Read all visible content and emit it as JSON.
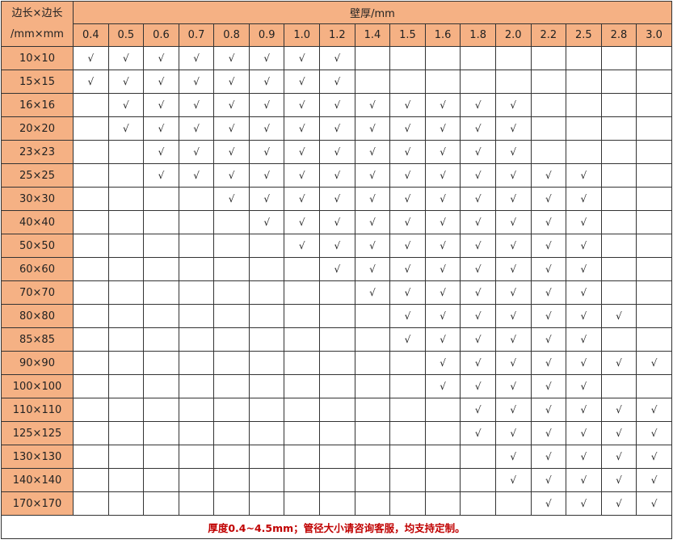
{
  "header": {
    "corner_line1": "边长×边长",
    "corner_line2": "/mm×mm",
    "title": "壁厚/mm",
    "header_color": "#f5b184"
  },
  "columns": [
    "0.4",
    "0.5",
    "0.6",
    "0.7",
    "0.8",
    "0.9",
    "1.0",
    "1.2",
    "1.4",
    "1.5",
    "1.6",
    "1.8",
    "2.0",
    "2.2",
    "2.5",
    "2.8",
    "3.0"
  ],
  "check_mark": "√",
  "rows": [
    {
      "size": "10×10",
      "cells": [
        1,
        1,
        1,
        1,
        1,
        1,
        1,
        1,
        0,
        0,
        0,
        0,
        0,
        0,
        0,
        0,
        0
      ]
    },
    {
      "size": "15×15",
      "cells": [
        1,
        1,
        1,
        1,
        1,
        1,
        1,
        1,
        0,
        0,
        0,
        0,
        0,
        0,
        0,
        0,
        0
      ]
    },
    {
      "size": "16×16",
      "cells": [
        0,
        1,
        1,
        1,
        1,
        1,
        1,
        1,
        1,
        1,
        1,
        1,
        1,
        0,
        0,
        0,
        0
      ]
    },
    {
      "size": "20×20",
      "cells": [
        0,
        1,
        1,
        1,
        1,
        1,
        1,
        1,
        1,
        1,
        1,
        1,
        1,
        0,
        0,
        0,
        0
      ]
    },
    {
      "size": "23×23",
      "cells": [
        0,
        0,
        1,
        1,
        1,
        1,
        1,
        1,
        1,
        1,
        1,
        1,
        1,
        0,
        0,
        0,
        0
      ]
    },
    {
      "size": "25×25",
      "cells": [
        0,
        0,
        1,
        1,
        1,
        1,
        1,
        1,
        1,
        1,
        1,
        1,
        1,
        1,
        1,
        0,
        0
      ]
    },
    {
      "size": "30×30",
      "cells": [
        0,
        0,
        0,
        0,
        1,
        1,
        1,
        1,
        1,
        1,
        1,
        1,
        1,
        1,
        1,
        0,
        0
      ]
    },
    {
      "size": "40×40",
      "cells": [
        0,
        0,
        0,
        0,
        0,
        1,
        1,
        1,
        1,
        1,
        1,
        1,
        1,
        1,
        1,
        0,
        0
      ]
    },
    {
      "size": "50×50",
      "cells": [
        0,
        0,
        0,
        0,
        0,
        0,
        1,
        1,
        1,
        1,
        1,
        1,
        1,
        1,
        1,
        0,
        0
      ]
    },
    {
      "size": "60×60",
      "cells": [
        0,
        0,
        0,
        0,
        0,
        0,
        0,
        1,
        1,
        1,
        1,
        1,
        1,
        1,
        1,
        0,
        0
      ]
    },
    {
      "size": "70×70",
      "cells": [
        0,
        0,
        0,
        0,
        0,
        0,
        0,
        0,
        1,
        1,
        1,
        1,
        1,
        1,
        1,
        0,
        0
      ]
    },
    {
      "size": "80×80",
      "cells": [
        0,
        0,
        0,
        0,
        0,
        0,
        0,
        0,
        0,
        1,
        1,
        1,
        1,
        1,
        1,
        1,
        0
      ]
    },
    {
      "size": "85×85",
      "cells": [
        0,
        0,
        0,
        0,
        0,
        0,
        0,
        0,
        0,
        1,
        1,
        1,
        1,
        1,
        1,
        0,
        0
      ]
    },
    {
      "size": "90×90",
      "cells": [
        0,
        0,
        0,
        0,
        0,
        0,
        0,
        0,
        0,
        0,
        1,
        1,
        1,
        1,
        1,
        1,
        1
      ]
    },
    {
      "size": "100×100",
      "cells": [
        0,
        0,
        0,
        0,
        0,
        0,
        0,
        0,
        0,
        0,
        1,
        1,
        1,
        1,
        1,
        0,
        0
      ]
    },
    {
      "size": "110×110",
      "cells": [
        0,
        0,
        0,
        0,
        0,
        0,
        0,
        0,
        0,
        0,
        0,
        1,
        1,
        1,
        1,
        1,
        1
      ]
    },
    {
      "size": "125×125",
      "cells": [
        0,
        0,
        0,
        0,
        0,
        0,
        0,
        0,
        0,
        0,
        0,
        1,
        1,
        1,
        1,
        1,
        1
      ]
    },
    {
      "size": "130×130",
      "cells": [
        0,
        0,
        0,
        0,
        0,
        0,
        0,
        0,
        0,
        0,
        0,
        0,
        1,
        1,
        1,
        1,
        1
      ]
    },
    {
      "size": "140×140",
      "cells": [
        0,
        0,
        0,
        0,
        0,
        0,
        0,
        0,
        0,
        0,
        0,
        0,
        1,
        1,
        1,
        1,
        1
      ]
    },
    {
      "size": "170×170",
      "cells": [
        0,
        0,
        0,
        0,
        0,
        0,
        0,
        0,
        0,
        0,
        0,
        0,
        0,
        1,
        1,
        1,
        1
      ]
    }
  ],
  "footer": {
    "note": "厚度0.4~4.5mm；管径大小请咨询客服，均支持定制。",
    "note_color": "#c00000"
  }
}
